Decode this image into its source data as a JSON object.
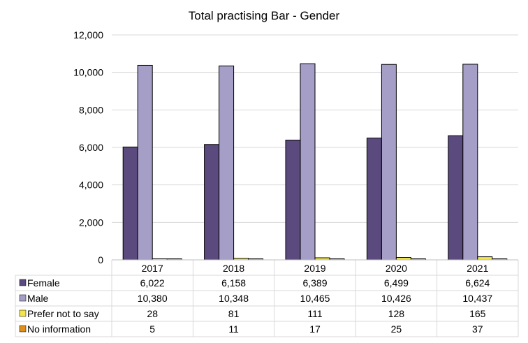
{
  "chart_data": {
    "type": "bar",
    "title": "Total practising Bar - Gender",
    "categories": [
      "2017",
      "2018",
      "2019",
      "2020",
      "2021"
    ],
    "ylim": [
      0,
      12000
    ],
    "yticks": [
      "0",
      "2,000",
      "4,000",
      "6,000",
      "8,000",
      "10,000",
      "12,000"
    ],
    "grid": true,
    "legend": "data-table-left",
    "series": [
      {
        "name": "Female",
        "color": "#5b4a7e",
        "values": [
          6022,
          6158,
          6389,
          6499,
          6624
        ],
        "labels": [
          "6,022",
          "6,158",
          "6,389",
          "6,499",
          "6,624"
        ]
      },
      {
        "name": "Male",
        "color": "#a59ec7",
        "values": [
          10380,
          10348,
          10465,
          10426,
          10437
        ],
        "labels": [
          "10,380",
          "10,348",
          "10,465",
          "10,426",
          "10,437"
        ]
      },
      {
        "name": "Prefer not to say",
        "color": "#f2e64c",
        "values": [
          28,
          81,
          111,
          128,
          165
        ],
        "labels": [
          "28",
          "81",
          "111",
          "128",
          "165"
        ]
      },
      {
        "name": "No information",
        "color": "#e0901a",
        "values": [
          5,
          11,
          17,
          25,
          37
        ],
        "labels": [
          "5",
          "11",
          "17",
          "25",
          "37"
        ]
      }
    ]
  }
}
